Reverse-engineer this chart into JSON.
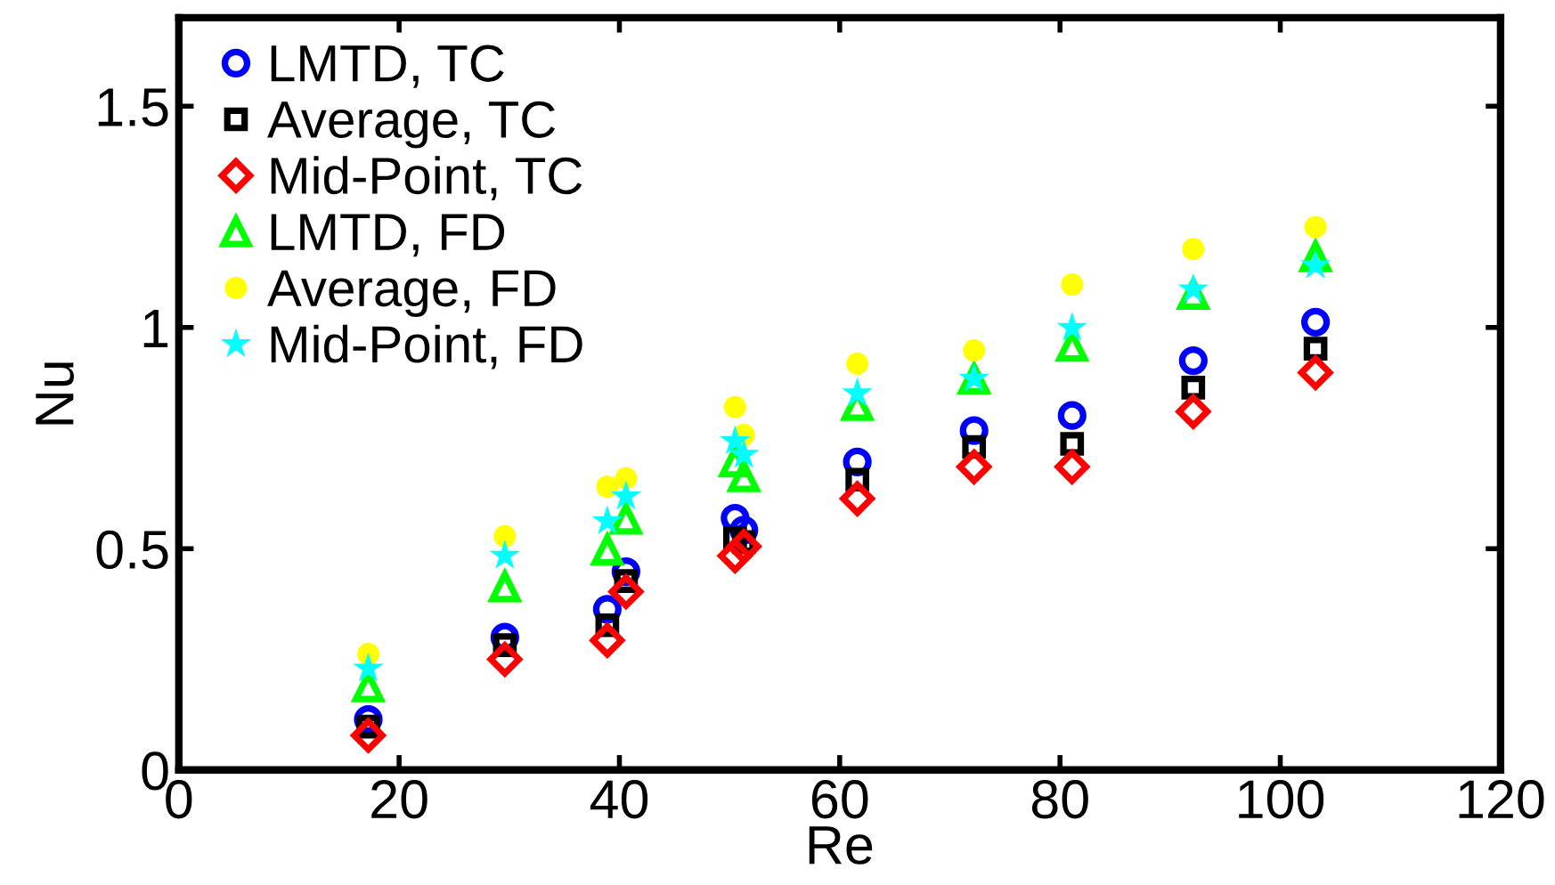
{
  "chart_data": {
    "type": "scatter",
    "xlabel": "Re",
    "ylabel": "Nu",
    "x": [
      17.2,
      29.6,
      38.9,
      40.6,
      50.5,
      51.3,
      61.6,
      72.2,
      81.1,
      92.1,
      103.2
    ],
    "xlim": [
      0,
      120
    ],
    "xticks": [
      0,
      20,
      40,
      60,
      80,
      100,
      120
    ],
    "ylim": [
      0,
      1.7
    ],
    "yticks": [
      0,
      0.5,
      1,
      1.5
    ],
    "grid": false,
    "legend": "top left",
    "series": [
      {
        "name": "LMTD, TC",
        "color": "#0000ff",
        "marker": "circle",
        "values": [
          0.114,
          0.3,
          0.363,
          0.448,
          0.569,
          0.542,
          0.696,
          0.767,
          0.801,
          0.925,
          1.012
        ]
      },
      {
        "name": "Average, TC",
        "color": "#000000",
        "marker": "square",
        "values": [
          0.098,
          0.282,
          0.327,
          0.427,
          0.524,
          0.515,
          0.656,
          0.73,
          0.737,
          0.864,
          0.952
        ]
      },
      {
        "name": "Mid-Point, TC",
        "color": "#ff0000",
        "marker": "diamond",
        "values": [
          0.078,
          0.25,
          0.293,
          0.403,
          0.484,
          0.505,
          0.613,
          0.685,
          0.685,
          0.81,
          0.898
        ]
      },
      {
        "name": "LMTD, FD",
        "color": "#00ff00",
        "marker": "triangle",
        "values": [
          0.188,
          0.414,
          0.497,
          0.567,
          0.696,
          0.663,
          0.824,
          0.884,
          0.958,
          1.075,
          1.16
        ]
      },
      {
        "name": "Average, FD",
        "color": "#ffff00",
        "marker": "circle",
        "values": [
          0.262,
          0.528,
          0.64,
          0.659,
          0.82,
          0.757,
          0.918,
          0.948,
          1.097,
          1.177,
          1.227
        ]
      },
      {
        "name": "Mid-Point, FD",
        "color": "#00ffff",
        "marker": "star",
        "values": [
          0.229,
          0.484,
          0.562,
          0.618,
          0.743,
          0.712,
          0.851,
          0.884,
          0.999,
          1.086,
          1.14
        ]
      }
    ]
  }
}
